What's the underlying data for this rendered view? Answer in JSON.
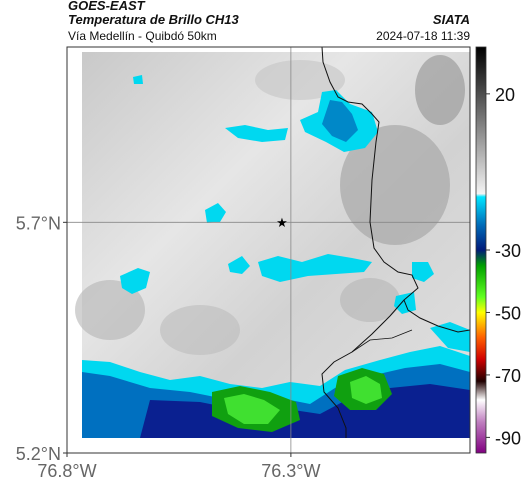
{
  "header": {
    "satellite": "GOES-EAST",
    "product": "Temperatura de Brillo CH13",
    "region": "Vía Medellín - Quibdó 50km",
    "agency": "SIATA",
    "datetime": "2024-07-18 11:39"
  },
  "map": {
    "lon_range": [
      -76.8,
      -75.9
    ],
    "lat_range": [
      5.2,
      6.08
    ],
    "x_ticks": [
      {
        "lon": -76.8,
        "label": "76.8°W"
      },
      {
        "lon": -76.3,
        "label": "76.3°W"
      }
    ],
    "y_ticks": [
      {
        "lat": 5.7,
        "label": "5.7°N"
      },
      {
        "lat": 5.2,
        "label": "5.2°N"
      }
    ],
    "grid_lon": -76.3,
    "grid_lat": 5.7,
    "marker": {
      "lon": -76.32,
      "lat": 5.7,
      "symbol": "★"
    }
  },
  "colorbar": {
    "range": [
      -95,
      35
    ],
    "ticks": [
      {
        "value": 20,
        "label": "20"
      },
      {
        "value": -30,
        "label": "-30"
      },
      {
        "value": -50,
        "label": "-50"
      },
      {
        "value": -70,
        "label": "-70"
      },
      {
        "value": -90,
        "label": "-90"
      }
    ],
    "stops": [
      {
        "value": 35,
        "color": "#000000"
      },
      {
        "value": -12,
        "color": "#f4f4f4"
      },
      {
        "value": -13,
        "color": "#00e5ff"
      },
      {
        "value": -22,
        "color": "#006bb8"
      },
      {
        "value": -30,
        "color": "#001a7a"
      },
      {
        "value": -35,
        "color": "#00a000"
      },
      {
        "value": -45,
        "color": "#60ff20"
      },
      {
        "value": -50,
        "color": "#ffff00"
      },
      {
        "value": -58,
        "color": "#ff6000"
      },
      {
        "value": -65,
        "color": "#d00000"
      },
      {
        "value": -72,
        "color": "#200000"
      },
      {
        "value": -78,
        "color": "#ffffff"
      },
      {
        "value": -85,
        "color": "#c080c0"
      },
      {
        "value": -95,
        "color": "#800080"
      }
    ]
  }
}
